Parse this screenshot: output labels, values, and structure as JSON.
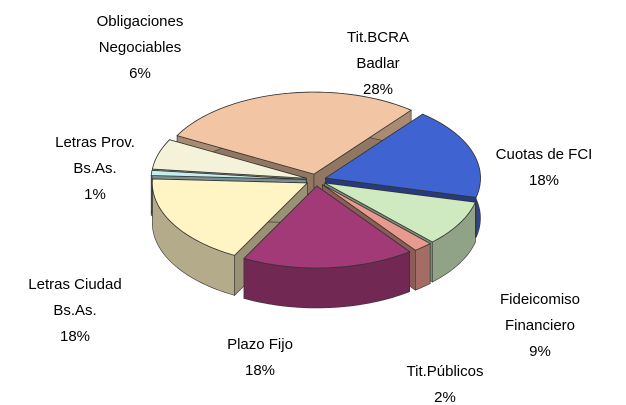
{
  "chart_data": {
    "type": "pie3d",
    "categories": [
      [
        "Tit.BCRA",
        "Badlar"
      ],
      [
        "Cuotas de FCI"
      ],
      [
        "Fideicomiso",
        "Financiero"
      ],
      [
        "Tit.Públicos"
      ],
      [
        "Plazo Fijo"
      ],
      [
        "Letras Ciudad",
        "Bs.As."
      ],
      [
        "Letras Prov.",
        "Bs.As."
      ],
      [
        "Obligaciones",
        "Negociables"
      ]
    ],
    "values": [
      28,
      18,
      9,
      2,
      18,
      18,
      1,
      6
    ],
    "value_labels": [
      "28%",
      "18%",
      "9%",
      "2%",
      "18%",
      "18%",
      "1%",
      "6%"
    ],
    "colors": [
      "#f2c6a4",
      "#3f63d0",
      "#cfe9c0",
      "#e99a8f",
      "#a23a78",
      "#fff4c4",
      "#c6eef0",
      "#f4f2d8"
    ]
  }
}
